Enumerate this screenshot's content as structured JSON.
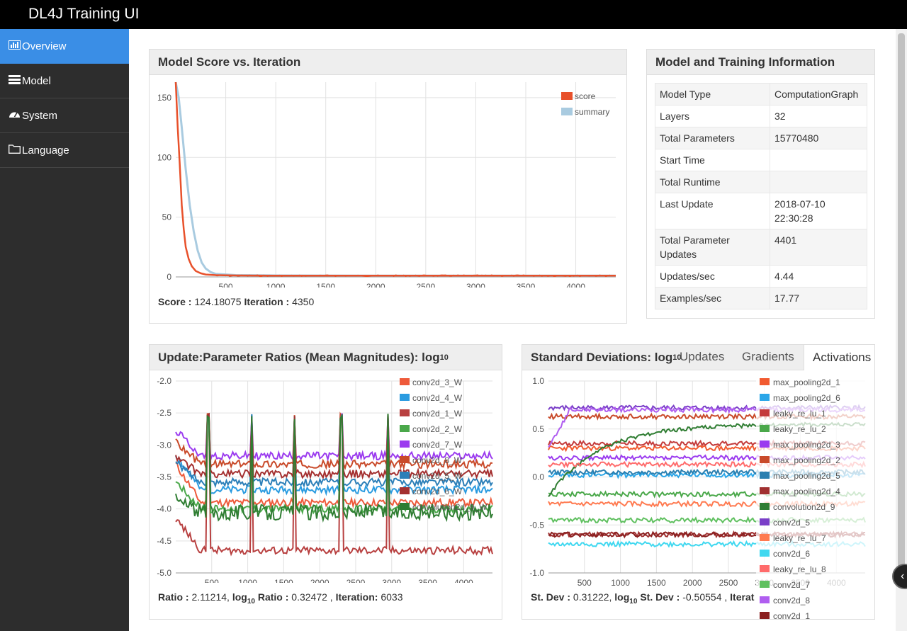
{
  "app": {
    "title": "DL4J Training UI"
  },
  "sidebar": {
    "items": [
      {
        "label": "Overview",
        "icon": "bar-chart-icon",
        "active": true
      },
      {
        "label": "Model",
        "icon": "list-icon",
        "active": false
      },
      {
        "label": "System",
        "icon": "dashboard-icon",
        "active": false
      },
      {
        "label": "Language",
        "icon": "folder-icon",
        "active": false
      }
    ]
  },
  "score_chart": {
    "title": "Model Score vs. Iteration",
    "foot": {
      "score_label": "Score :",
      "score_value": "124.18075",
      "iter_label": "Iteration :",
      "iter_value": "4350"
    },
    "chart_data": {
      "type": "line",
      "ylim": [
        0,
        163
      ],
      "xlim": [
        0,
        4400
      ],
      "yticks": [
        0,
        50,
        100,
        150
      ],
      "xticks": [
        500,
        1000,
        1500,
        2000,
        2500,
        3000,
        3500,
        4000
      ],
      "legend": "top-right",
      "series": [
        {
          "name": "score",
          "color": "#e8512b",
          "x": [
            0,
            20,
            40,
            60,
            80,
            100,
            130,
            160,
            200,
            250,
            300,
            400,
            600,
            1000,
            2000,
            3000,
            4000,
            4400
          ],
          "values": [
            163,
            125,
            95,
            60,
            40,
            25,
            15,
            9,
            5,
            3,
            2,
            1.5,
            1.2,
            1,
            1,
            1,
            1,
            1
          ]
        },
        {
          "name": "summary",
          "color": "#a9cbe0",
          "x": [
            0,
            30,
            60,
            100,
            140,
            180,
            220,
            260,
            300,
            350,
            400,
            600,
            1000,
            2000,
            3000,
            4000,
            4400
          ],
          "values": [
            163,
            150,
            125,
            90,
            60,
            38,
            22,
            12,
            7,
            4,
            2.5,
            1.5,
            1.2,
            1,
            1,
            1,
            1
          ]
        }
      ]
    }
  },
  "info": {
    "title": "Model and Training Information",
    "rows": [
      {
        "k": "Model Type",
        "v": "ComputationGraph"
      },
      {
        "k": "Layers",
        "v": "32"
      },
      {
        "k": "Total Parameters",
        "v": "15770480"
      },
      {
        "k": "Start Time",
        "v": ""
      },
      {
        "k": "Total Runtime",
        "v": ""
      },
      {
        "k": "Last Update",
        "v": "2018-07-10 22:30:28"
      },
      {
        "k": "Total Parameter Updates",
        "v": "4401"
      },
      {
        "k": "Updates/sec",
        "v": "4.44"
      },
      {
        "k": "Examples/sec",
        "v": "17.77"
      }
    ]
  },
  "ratio_chart": {
    "title": "Update:Parameter Ratios (Mean Magnitudes): log",
    "title_sub": "10",
    "foot": {
      "ratio_label": "Ratio :",
      "ratio_value": "2.11214,",
      "log_label": "log",
      "log_sub": "10",
      "log_ratio_label": "Ratio :",
      "log_ratio_value": "0.32472 ,",
      "iter_label": "Iteration:",
      "iter_value": "6033"
    },
    "chart_data": {
      "type": "line",
      "ylim": [
        -5.0,
        -2.0
      ],
      "xlim": [
        0,
        4400
      ],
      "yticks": [
        -2.0,
        -2.5,
        -3.0,
        -3.5,
        -4.0,
        -4.5,
        -5.0
      ],
      "xticks": [
        500,
        1000,
        1500,
        2000,
        2500,
        3000,
        3500,
        4000
      ],
      "legend": "top-right",
      "series": [
        {
          "name": "conv2d_3_W",
          "color": "#ee5a3a",
          "level": -3.9
        },
        {
          "name": "conv2d_4_W",
          "color": "#2a9be0",
          "level": -3.7
        },
        {
          "name": "conv2d_1_W",
          "color": "#b84040",
          "level": -4.65
        },
        {
          "name": "conv2d_2_W",
          "color": "#4aa84a",
          "level": -4.0
        },
        {
          "name": "conv2d_7_W",
          "color": "#9b3bef",
          "level": -3.17
        },
        {
          "name": "conv2d_8_W",
          "color": "#c94a2a",
          "level": -3.3
        },
        {
          "name": "conv2d_5_W",
          "color": "#2c7fb8",
          "level": -3.58
        },
        {
          "name": "conv2d_6_W",
          "color": "#a43030",
          "level": -3.45
        },
        {
          "name": "convolution2d_9_W",
          "color": "#2f7d32",
          "level": -4.05
        }
      ]
    }
  },
  "std_chart": {
    "title": "Standard Deviations: log",
    "title_sub": "10",
    "tabs": [
      "Updates",
      "Gradients",
      "Activations"
    ],
    "active_tab": "Activations",
    "foot": {
      "sd_label": "St. Dev :",
      "sd_value": "0.31222,",
      "log_label": "log",
      "log_sub": "10",
      "log_sd_label": "St. Dev :",
      "log_sd_value": "-0.50554 ,",
      "iter_label": "Iterat"
    },
    "chart_data": {
      "type": "line",
      "ylim": [
        -1.0,
        1.0
      ],
      "xlim": [
        0,
        4400
      ],
      "yticks": [
        1.0,
        0.5,
        0.0,
        -0.5,
        -1.0
      ],
      "xticks": [
        500,
        1000,
        1500,
        2000,
        2500,
        3000,
        3500,
        4000
      ],
      "legend": "top-right",
      "series": [
        {
          "name": "max_pooling2d_1",
          "color": "#f15a30",
          "level": 0.3
        },
        {
          "name": "max_pooling2d_6",
          "color": "#2aa6e8",
          "level": 0.02
        },
        {
          "name": "leaky_re_lu_1",
          "color": "#c43b3b",
          "level": 0.35
        },
        {
          "name": "leaky_re_lu_2",
          "color": "#4aa84a",
          "level": -0.18
        },
        {
          "name": "max_pooling2d_3",
          "color": "#9b3bef",
          "level": 0.2
        },
        {
          "name": "max_pooling2d_2",
          "color": "#c94a2a",
          "level": 0.63
        },
        {
          "name": "max_pooling2d_5",
          "color": "#2a7fb0",
          "level": 0.05
        },
        {
          "name": "max_pooling2d_4",
          "color": "#a03030",
          "level": -0.6
        },
        {
          "name": "convolution2d_9",
          "color": "#2f7d32",
          "level": 0.55
        },
        {
          "name": "conv2d_5",
          "color": "#7a3fc8",
          "level": 0.72
        },
        {
          "name": "leaky_re_lu_7",
          "color": "#ff7a50",
          "level": -0.28
        },
        {
          "name": "conv2d_6",
          "color": "#40d8f0",
          "level": -0.7
        },
        {
          "name": "leaky_re_lu_8",
          "color": "#ff6b6b",
          "level": 0.13
        },
        {
          "name": "conv2d_7",
          "color": "#60c060",
          "level": -0.45
        },
        {
          "name": "conv2d_8",
          "color": "#b05ef0",
          "level": 0.7
        },
        {
          "name": "conv2d_1",
          "color": "#8b2020",
          "level": -0.6
        }
      ]
    }
  }
}
